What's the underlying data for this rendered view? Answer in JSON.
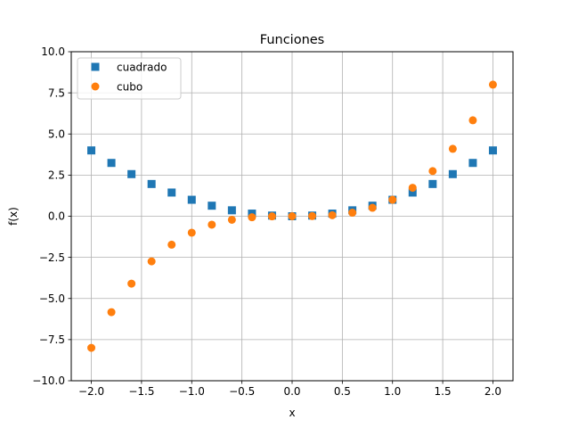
{
  "chart_data": {
    "type": "scatter",
    "title": "Funciones",
    "xlabel": "x",
    "ylabel": "f(x)",
    "xlim": [
      -2.2,
      2.2
    ],
    "ylim": [
      -10,
      10
    ],
    "grid": true,
    "legend_position": "top-left",
    "x_ticks": [
      -2.0,
      -1.5,
      -1.0,
      -0.5,
      0.0,
      0.5,
      1.0,
      1.5,
      2.0
    ],
    "x_tick_labels": [
      "−2.0",
      "−1.5",
      "−1.0",
      "−0.5",
      "0.0",
      "0.5",
      "1.0",
      "1.5",
      "2.0"
    ],
    "y_ticks": [
      -10,
      -7.5,
      -5,
      -2.5,
      0,
      2.5,
      5,
      7.5,
      10
    ],
    "y_tick_labels": [
      "−10.0",
      "−7.5",
      "−5.0",
      "−2.5",
      "0.0",
      "2.5",
      "5.0",
      "7.5",
      "10.0"
    ],
    "x": [
      -2.0,
      -1.8,
      -1.6,
      -1.4,
      -1.2,
      -1.0,
      -0.8,
      -0.6,
      -0.4,
      -0.2,
      0.0,
      0.2,
      0.4,
      0.6,
      0.8,
      1.0,
      1.2,
      1.4,
      1.6,
      1.8,
      2.0
    ],
    "series": [
      {
        "name": "cuadrado",
        "marker": "square",
        "color": "#1f77b4",
        "values": [
          4.0,
          3.24,
          2.56,
          1.96,
          1.44,
          1.0,
          0.64,
          0.36,
          0.16,
          0.04,
          0.0,
          0.04,
          0.16,
          0.36,
          0.64,
          1.0,
          1.44,
          1.96,
          2.56,
          3.24,
          4.0
        ]
      },
      {
        "name": "cubo",
        "marker": "circle",
        "color": "#ff7f0e",
        "values": [
          -8.0,
          -5.832,
          -4.096,
          -2.744,
          -1.728,
          -1.0,
          -0.512,
          -0.216,
          -0.064,
          -0.008,
          0.0,
          0.008,
          0.064,
          0.216,
          0.512,
          1.0,
          1.728,
          2.744,
          4.096,
          5.832,
          8.0
        ]
      }
    ]
  }
}
